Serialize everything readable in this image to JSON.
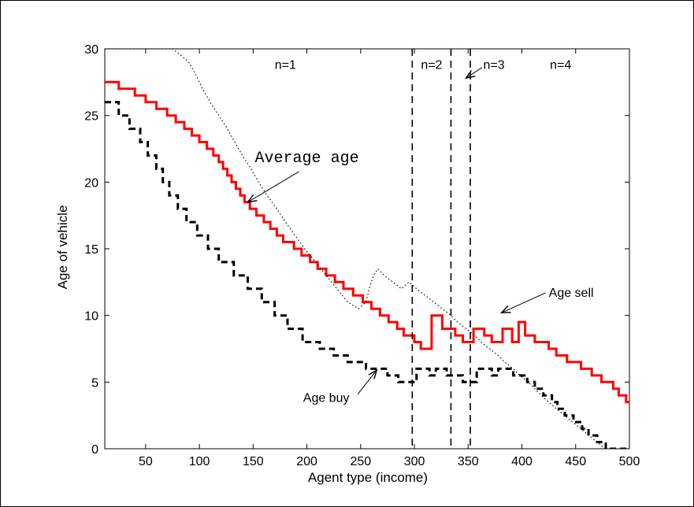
{
  "chart_data": {
    "type": "line",
    "title": "",
    "xlabel": "Agent type (income)",
    "ylabel": "Age of vehicle",
    "xlim": [
      12,
      500
    ],
    "ylim": [
      0,
      30
    ],
    "xticks": [
      50,
      100,
      150,
      200,
      250,
      300,
      350,
      400,
      450,
      500
    ],
    "yticks": [
      0,
      5,
      10,
      15,
      20,
      25,
      30
    ],
    "grid": false,
    "series": [
      {
        "key": "average",
        "color": "#ff0000",
        "style": "solid",
        "points": [
          [
            12,
            27.5
          ],
          [
            25,
            27.5
          ],
          [
            25,
            27
          ],
          [
            40,
            27
          ],
          [
            40,
            26.5
          ],
          [
            50,
            26.5
          ],
          [
            50,
            26
          ],
          [
            60,
            26
          ],
          [
            60,
            25.5
          ],
          [
            70,
            25.5
          ],
          [
            70,
            25
          ],
          [
            78,
            25
          ],
          [
            78,
            24.5
          ],
          [
            86,
            24.5
          ],
          [
            86,
            24
          ],
          [
            93,
            24
          ],
          [
            93,
            23.5
          ],
          [
            100,
            23.5
          ],
          [
            100,
            23
          ],
          [
            107,
            23
          ],
          [
            107,
            22.5
          ],
          [
            113,
            22.5
          ],
          [
            113,
            22
          ],
          [
            118,
            22
          ],
          [
            118,
            21.5
          ],
          [
            122,
            21.5
          ],
          [
            122,
            21
          ],
          [
            126,
            21
          ],
          [
            126,
            20.5
          ],
          [
            130,
            20.5
          ],
          [
            130,
            20
          ],
          [
            134,
            20
          ],
          [
            134,
            19.5
          ],
          [
            138,
            19.5
          ],
          [
            138,
            19
          ],
          [
            142,
            19
          ],
          [
            142,
            18.5
          ],
          [
            147,
            18.5
          ],
          [
            147,
            18
          ],
          [
            153,
            18
          ],
          [
            153,
            17.5
          ],
          [
            160,
            17.5
          ],
          [
            160,
            17
          ],
          [
            166,
            17
          ],
          [
            166,
            16.5
          ],
          [
            172,
            16.5
          ],
          [
            172,
            16
          ],
          [
            178,
            16
          ],
          [
            178,
            15.5
          ],
          [
            188,
            15.5
          ],
          [
            188,
            15
          ],
          [
            195,
            15
          ],
          [
            195,
            14.5
          ],
          [
            203,
            14.5
          ],
          [
            203,
            14
          ],
          [
            210,
            14
          ],
          [
            210,
            13.5
          ],
          [
            218,
            13.5
          ],
          [
            218,
            13
          ],
          [
            226,
            13
          ],
          [
            226,
            12.5
          ],
          [
            234,
            12.5
          ],
          [
            234,
            12
          ],
          [
            243,
            12
          ],
          [
            243,
            11.5
          ],
          [
            252,
            11.5
          ],
          [
            252,
            11
          ],
          [
            260,
            11
          ],
          [
            260,
            10.5
          ],
          [
            268,
            10.5
          ],
          [
            268,
            10
          ],
          [
            276,
            10
          ],
          [
            276,
            9.5
          ],
          [
            284,
            9.5
          ],
          [
            284,
            9
          ],
          [
            290,
            9
          ],
          [
            290,
            8.5
          ],
          [
            300,
            8.5
          ],
          [
            300,
            8
          ],
          [
            306,
            8
          ],
          [
            306,
            7.5
          ],
          [
            316,
            7.5
          ],
          [
            316,
            10
          ],
          [
            326,
            10
          ],
          [
            326,
            9
          ],
          [
            338,
            9
          ],
          [
            338,
            8.5
          ],
          [
            345,
            8.5
          ],
          [
            345,
            8
          ],
          [
            355,
            8
          ],
          [
            355,
            9
          ],
          [
            365,
            9
          ],
          [
            365,
            8.5
          ],
          [
            372,
            8.5
          ],
          [
            372,
            8
          ],
          [
            382,
            8
          ],
          [
            382,
            9
          ],
          [
            391,
            9
          ],
          [
            391,
            8
          ],
          [
            397,
            8
          ],
          [
            397,
            9.5
          ],
          [
            403,
            9.5
          ],
          [
            403,
            8.5
          ],
          [
            412,
            8.5
          ],
          [
            412,
            8
          ],
          [
            425,
            8
          ],
          [
            425,
            7.5
          ],
          [
            432,
            7.5
          ],
          [
            432,
            7
          ],
          [
            442,
            7
          ],
          [
            442,
            6.5
          ],
          [
            455,
            6.5
          ],
          [
            455,
            6
          ],
          [
            465,
            6
          ],
          [
            465,
            5.5
          ],
          [
            474,
            5.5
          ],
          [
            474,
            5
          ],
          [
            485,
            5
          ],
          [
            485,
            4.5
          ],
          [
            490,
            4.5
          ],
          [
            490,
            4
          ],
          [
            497,
            4
          ],
          [
            497,
            3.5
          ],
          [
            502,
            3.5
          ],
          [
            502,
            3
          ],
          [
            507,
            3
          ],
          [
            507,
            2.5
          ],
          [
            511,
            2.5
          ],
          [
            511,
            2
          ],
          [
            515,
            2
          ],
          [
            515,
            1.5
          ],
          [
            518,
            1.5
          ],
          [
            518,
            1
          ],
          [
            521,
            1
          ],
          [
            521,
            0.5
          ],
          [
            524,
            0.5
          ]
        ]
      },
      {
        "key": "buy",
        "color": "#000000",
        "style": "dashed",
        "points": [
          [
            12,
            26
          ],
          [
            25,
            26
          ],
          [
            25,
            25
          ],
          [
            35,
            25
          ],
          [
            35,
            24
          ],
          [
            45,
            24
          ],
          [
            45,
            23
          ],
          [
            52,
            23
          ],
          [
            52,
            22
          ],
          [
            60,
            22
          ],
          [
            60,
            21
          ],
          [
            66,
            21
          ],
          [
            66,
            20
          ],
          [
            72,
            20
          ],
          [
            72,
            19
          ],
          [
            80,
            19
          ],
          [
            80,
            18
          ],
          [
            88,
            18
          ],
          [
            88,
            17
          ],
          [
            98,
            17
          ],
          [
            98,
            16
          ],
          [
            108,
            16
          ],
          [
            108,
            15
          ],
          [
            118,
            15
          ],
          [
            118,
            14
          ],
          [
            132,
            14
          ],
          [
            132,
            13
          ],
          [
            145,
            13
          ],
          [
            145,
            12
          ],
          [
            158,
            12
          ],
          [
            158,
            11
          ],
          [
            170,
            11
          ],
          [
            170,
            10
          ],
          [
            182,
            10
          ],
          [
            182,
            9
          ],
          [
            196,
            9
          ],
          [
            196,
            8
          ],
          [
            212,
            8
          ],
          [
            212,
            7.5
          ],
          [
            225,
            7.5
          ],
          [
            225,
            7
          ],
          [
            238,
            7
          ],
          [
            238,
            6.5
          ],
          [
            255,
            6.5
          ],
          [
            255,
            6
          ],
          [
            275,
            6
          ],
          [
            275,
            5.5
          ],
          [
            285,
            5.5
          ],
          [
            285,
            5
          ],
          [
            302,
            5
          ],
          [
            302,
            6
          ],
          [
            314,
            6
          ],
          [
            314,
            5.5
          ],
          [
            320,
            5.5
          ],
          [
            320,
            6
          ],
          [
            330,
            6
          ],
          [
            330,
            5.5
          ],
          [
            345,
            5.5
          ],
          [
            345,
            5
          ],
          [
            358,
            5
          ],
          [
            358,
            6
          ],
          [
            372,
            6
          ],
          [
            372,
            5.5
          ],
          [
            378,
            5.5
          ],
          [
            378,
            6
          ],
          [
            392,
            6
          ],
          [
            392,
            5.5
          ],
          [
            405,
            5.5
          ],
          [
            405,
            5
          ],
          [
            412,
            5
          ],
          [
            412,
            4.5
          ],
          [
            420,
            4.5
          ],
          [
            420,
            4
          ],
          [
            428,
            4
          ],
          [
            428,
            3.5
          ],
          [
            433,
            3.5
          ],
          [
            433,
            3
          ],
          [
            440,
            3
          ],
          [
            440,
            2.5
          ],
          [
            448,
            2.5
          ],
          [
            448,
            2
          ],
          [
            456,
            2
          ],
          [
            456,
            1.5
          ],
          [
            462,
            1.5
          ],
          [
            462,
            1
          ],
          [
            470,
            1
          ],
          [
            470,
            0.5
          ],
          [
            478,
            0.5
          ],
          [
            478,
            0
          ],
          [
            500,
            0
          ]
        ]
      },
      {
        "key": "sell",
        "color": "#000000",
        "style": "dotted",
        "points": [
          [
            12,
            30
          ],
          [
            30,
            30
          ],
          [
            75,
            30
          ],
          [
            83,
            29.5
          ],
          [
            90,
            29
          ],
          [
            97,
            28
          ],
          [
            103,
            27
          ],
          [
            110,
            26
          ],
          [
            118,
            25
          ],
          [
            126,
            24
          ],
          [
            133,
            23
          ],
          [
            140,
            22
          ],
          [
            148,
            21
          ],
          [
            155,
            20
          ],
          [
            163,
            19
          ],
          [
            172,
            18
          ],
          [
            180,
            17
          ],
          [
            189,
            16
          ],
          [
            198,
            15
          ],
          [
            208,
            14
          ],
          [
            218,
            13
          ],
          [
            228,
            12
          ],
          [
            238,
            11
          ],
          [
            248,
            10.5
          ],
          [
            255,
            11
          ],
          [
            258,
            12
          ],
          [
            262,
            13
          ],
          [
            266,
            13.5
          ],
          [
            272,
            13
          ],
          [
            280,
            12.5
          ],
          [
            288,
            12
          ],
          [
            295,
            12.5
          ],
          [
            302,
            12
          ],
          [
            310,
            11.5
          ],
          [
            318,
            11
          ],
          [
            326,
            10.5
          ],
          [
            334,
            10
          ],
          [
            340,
            9.5
          ],
          [
            348,
            9
          ],
          [
            356,
            8.5
          ],
          [
            362,
            8
          ],
          [
            370,
            7.5
          ],
          [
            378,
            7
          ],
          [
            384,
            6.5
          ],
          [
            392,
            6
          ],
          [
            398,
            5.5
          ],
          [
            406,
            5
          ],
          [
            412,
            4.5
          ],
          [
            418,
            4
          ],
          [
            425,
            3.5
          ],
          [
            432,
            3
          ],
          [
            440,
            2.5
          ],
          [
            447,
            2
          ],
          [
            455,
            1.5
          ],
          [
            462,
            1
          ],
          [
            470,
            0.5
          ],
          [
            477,
            0
          ]
        ]
      }
    ],
    "vlines": [
      298,
      334,
      352
    ],
    "regions": [
      {
        "label": "n=1",
        "x": 180,
        "y": 28.5
      },
      {
        "label": "n=2",
        "x": 316,
        "y": 28.5
      },
      {
        "label": "n=3",
        "x": 374,
        "y": 28.5
      },
      {
        "label": "n=4",
        "x": 436,
        "y": 28.5
      }
    ],
    "annotations": [
      {
        "key": "average",
        "text": "Average age",
        "tx": 200,
        "ty": 21.5,
        "ax": 145,
        "ay": 18.5,
        "mono": true,
        "anchor": "middle"
      },
      {
        "key": "sell",
        "text": "Age sell",
        "tx": 425,
        "ty": 11.4,
        "ax": 381,
        "ay": 10.2,
        "mono": false,
        "anchor": "start"
      },
      {
        "key": "buy",
        "text": "Age buy",
        "tx": 218,
        "ty": 3.5,
        "ax": 265,
        "ay": 5.9,
        "mono": false,
        "anchor": "middle"
      },
      {
        "key": "n3",
        "text": "",
        "tx": 363,
        "ty": 28.6,
        "ax": 348,
        "ay": 27.8,
        "mono": false,
        "anchor": "middle"
      }
    ]
  }
}
